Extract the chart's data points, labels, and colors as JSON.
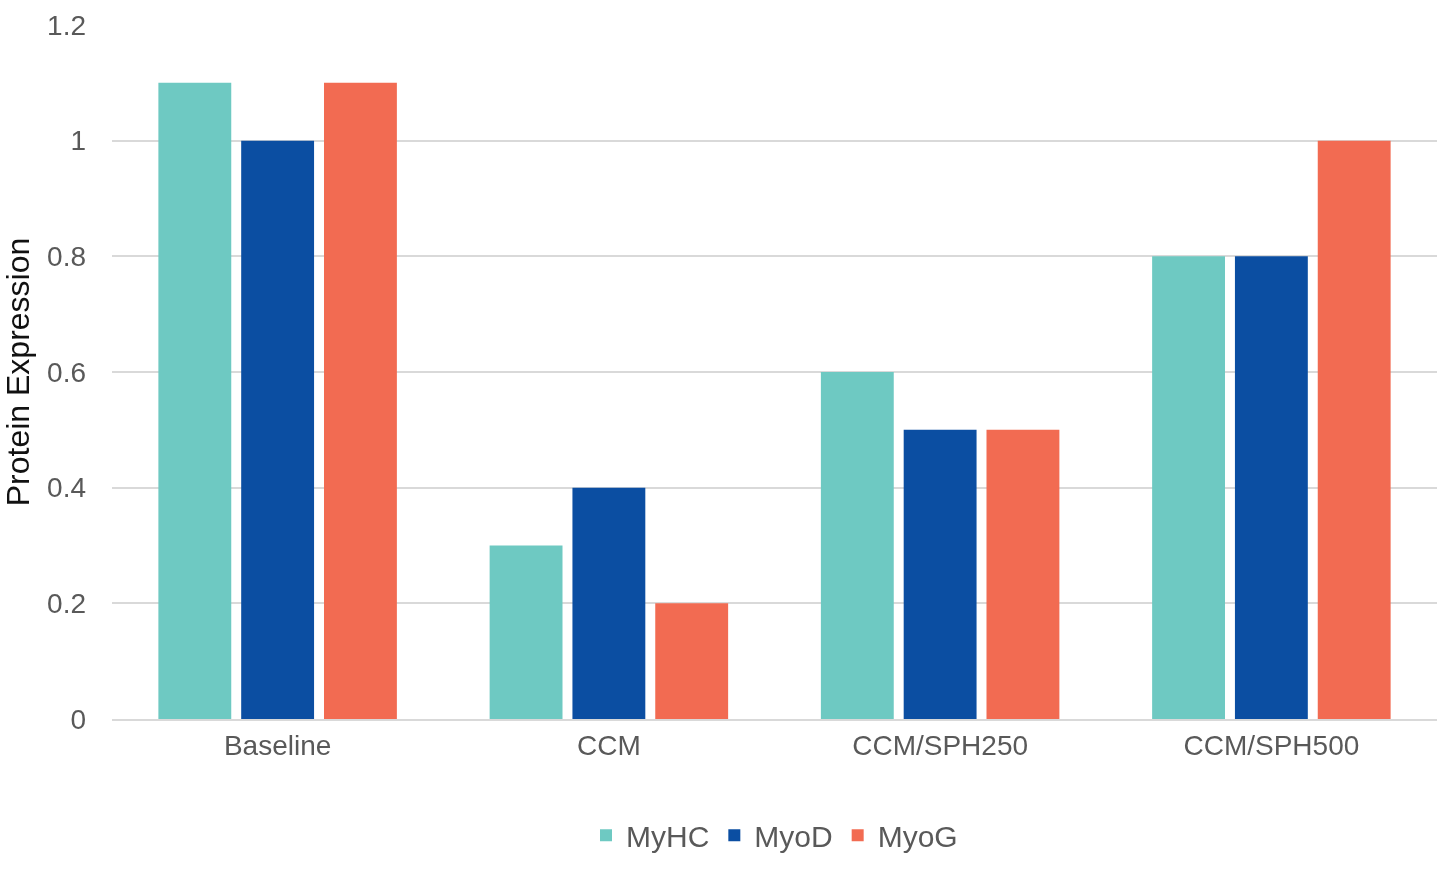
{
  "chart_data": {
    "type": "bar",
    "ylabel": "Protein Expression",
    "categories": [
      "Baseline",
      "CCM",
      "CCM/SPH250",
      "CCM/SPH500"
    ],
    "series": [
      {
        "name": "MyHC",
        "color": "#6ec9c2",
        "values": [
          1.1,
          0.3,
          0.6,
          0.8
        ]
      },
      {
        "name": "MyoD",
        "color": "#0b4ea2",
        "values": [
          1.0,
          0.4,
          0.5,
          0.8
        ]
      },
      {
        "name": "MyoG",
        "color": "#f26b52",
        "values": [
          1.1,
          0.2,
          0.5,
          1.0
        ]
      }
    ],
    "ylim": [
      0,
      1.2
    ],
    "yticks": [
      0,
      0.2,
      0.4,
      0.6,
      0.8,
      1,
      1.2
    ],
    "grid": "y",
    "legend": "bottom"
  }
}
